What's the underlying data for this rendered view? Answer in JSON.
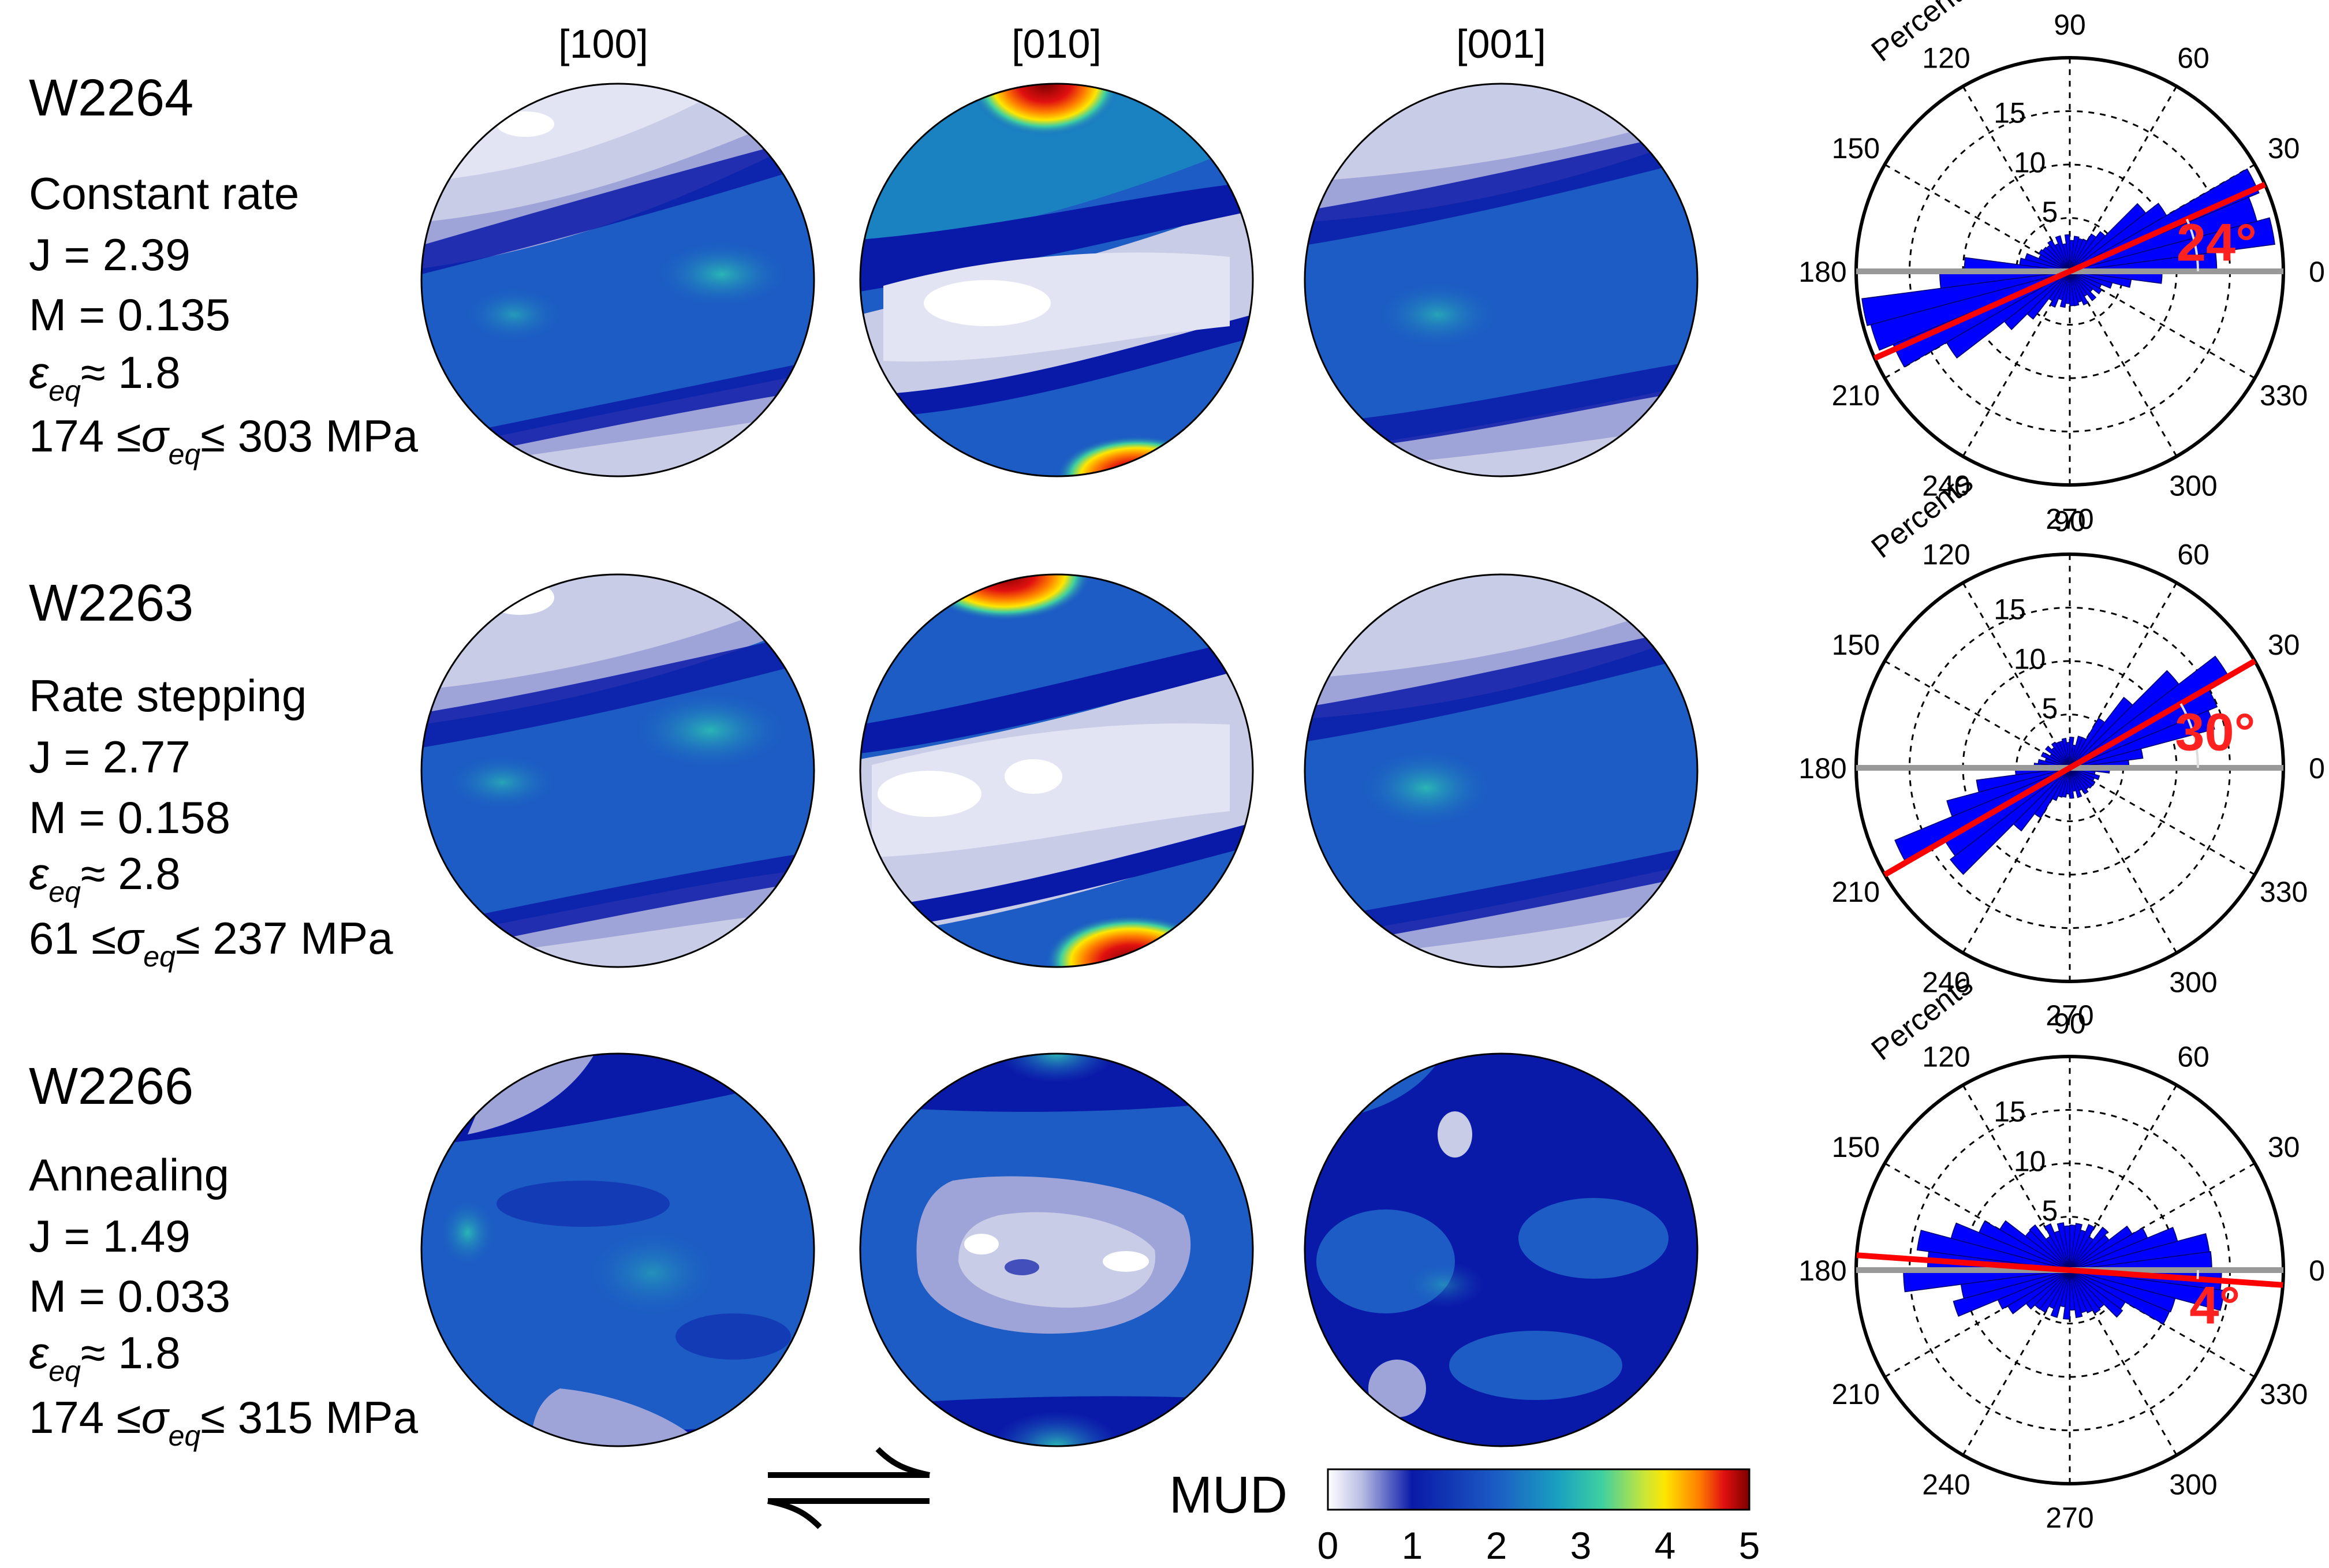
{
  "column_headers": [
    "[100]",
    "[010]",
    "[001]"
  ],
  "samples": [
    {
      "id": "W2264",
      "method": "Constant rate",
      "J": "J = 2.39",
      "M": "M = 0.135",
      "strain_value": "≈ 1.8",
      "stress_low": "174 ≤",
      "stress_high": "≤ 303 MPa",
      "misorientation_angle": "24°"
    },
    {
      "id": "W2263",
      "method": "Rate stepping",
      "J": "J = 2.77",
      "M": "M = 0.158",
      "strain_value": "≈ 2.8",
      "stress_low": "61 ≤",
      "stress_high": "≤ 237 MPa",
      "misorientation_angle": "30°"
    },
    {
      "id": "W2266",
      "method": "Annealing",
      "J": "J = 1.49",
      "M": "M = 0.033",
      "strain_value": "≈ 1.8",
      "stress_low": "174 ≤",
      "stress_high": "≤ 315 MPa",
      "misorientation_angle": "4°"
    }
  ],
  "symbols": {
    "epsilon": "ε",
    "sigma": "σ",
    "eq_subscript": "eq"
  },
  "colorbar": {
    "label": "MUD",
    "ticks": [
      "0",
      "1",
      "2",
      "3",
      "4",
      "5"
    ],
    "colors": [
      "#ffffff",
      "#c9cce6",
      "#9fa4d8",
      "#0a1aa8",
      "#1c5cc4",
      "#1aa2c0",
      "#3fd0a0",
      "#c8e63a",
      "#ffe600",
      "#ff8000",
      "#e01010",
      "#7a0000"
    ]
  },
  "chart_data": [
    {
      "type": "pole-figure",
      "title": "W2264 pole figures ([100], [010], [001])",
      "value_label": "MUD",
      "value_range": [
        0,
        5
      ],
      "maxima": {
        "[100]": 1.6,
        "[010]": 5.0,
        "[001]": 1.6
      }
    },
    {
      "type": "pole-figure",
      "title": "W2263 pole figures ([100], [010], [001])",
      "value_label": "MUD",
      "value_range": [
        0,
        5
      ],
      "maxima": {
        "[100]": 2.2,
        "[010]": 5.0,
        "[001]": 2.0
      }
    },
    {
      "type": "pole-figure",
      "title": "W2266 pole figures ([100], [010], [001])",
      "value_label": "MUD",
      "value_range": [
        0,
        5
      ],
      "maxima": {
        "[100]": 1.7,
        "[010]": 2.0,
        "[001]": 1.5
      }
    },
    {
      "type": "polar-rose",
      "sample": "W2264",
      "radial_label": "Percents",
      "radial_ticks": [
        5,
        10,
        15
      ],
      "radial_max": 20,
      "angle_ticks": [
        0,
        30,
        60,
        90,
        120,
        150,
        180,
        210,
        240,
        270,
        300,
        330
      ],
      "dominant_direction_deg": 24,
      "rose_axis_deg": 18,
      "petal_spread_deg": 15,
      "peak_percent": 19,
      "minor_percent": 3
    },
    {
      "type": "polar-rose",
      "sample": "W2263",
      "radial_label": "Percents",
      "radial_ticks": [
        5,
        10,
        15
      ],
      "radial_max": 20,
      "angle_ticks": [
        0,
        30,
        60,
        90,
        120,
        150,
        180,
        210,
        240,
        270,
        300,
        330
      ],
      "dominant_direction_deg": 30,
      "rose_axis_deg": 30,
      "petal_spread_deg": 14,
      "peak_percent": 16,
      "minor_percent": 2.5
    },
    {
      "type": "polar-rose",
      "sample": "W2266",
      "radial_label": "Percents",
      "radial_ticks": [
        5,
        10,
        15
      ],
      "radial_max": 20,
      "angle_ticks": [
        0,
        30,
        60,
        90,
        120,
        150,
        180,
        210,
        240,
        270,
        300,
        330
      ],
      "dominant_direction_deg": -4,
      "rose_axis_deg": -2,
      "petal_spread_deg": 20,
      "peak_percent": 14,
      "minor_percent": 4
    }
  ]
}
